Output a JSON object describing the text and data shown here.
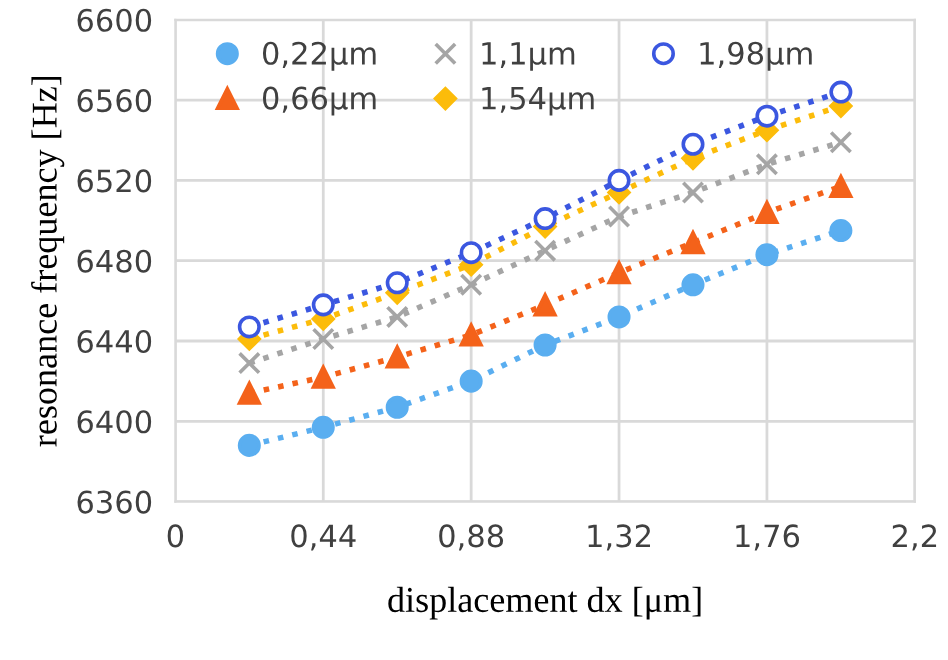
{
  "chart_data": {
    "type": "line",
    "xlabel": "displacement dx [μm]",
    "ylabel": "resonance frequency [Hz]",
    "x": [
      0.22,
      0.44,
      0.66,
      0.88,
      1.1,
      1.32,
      1.54,
      1.76,
      1.98
    ],
    "series": [
      {
        "name": "0,22μm",
        "color": "#5aaef0",
        "marker": "circle",
        "values": [
          6388,
          6397,
          6407,
          6420,
          6438,
          6452,
          6468,
          6483,
          6495
        ]
      },
      {
        "name": "0,66μm",
        "color": "#f4621a",
        "marker": "triangle",
        "values": [
          6414,
          6422,
          6432,
          6443,
          6458,
          6474,
          6489,
          6504,
          6517
        ]
      },
      {
        "name": "1,1μm",
        "color": "#a5a5a5",
        "marker": "cross",
        "values": [
          6429,
          6441,
          6452,
          6468,
          6485,
          6502,
          6514,
          6528,
          6539
        ]
      },
      {
        "name": "1,54μm",
        "color": "#fcbc0a",
        "marker": "diamond",
        "values": [
          6441,
          6451,
          6464,
          6478,
          6497,
          6514,
          6531,
          6545,
          6557
        ]
      },
      {
        "name": "1,98μm",
        "color": "#3b57e0",
        "marker": "open circle",
        "values": [
          6447,
          6458,
          6469,
          6484,
          6501,
          6520,
          6538,
          6552,
          6564
        ]
      }
    ],
    "xlim": [
      0,
      2.2
    ],
    "xticks": [
      0,
      {
        "value": 0.44,
        "label": "0,44"
      },
      {
        "value": 0.88,
        "label": "0,88"
      },
      {
        "value": 1.32,
        "label": "1,32"
      },
      {
        "value": 1.76,
        "label": "1,76"
      },
      {
        "value": 2.2,
        "label": "2,2"
      }
    ],
    "ylim": [
      6360,
      6600
    ],
    "yticks": [
      6360,
      6400,
      6440,
      6480,
      6520,
      6560,
      6600
    ],
    "grid": true,
    "legend": "top left",
    "line_style": "dotted"
  }
}
